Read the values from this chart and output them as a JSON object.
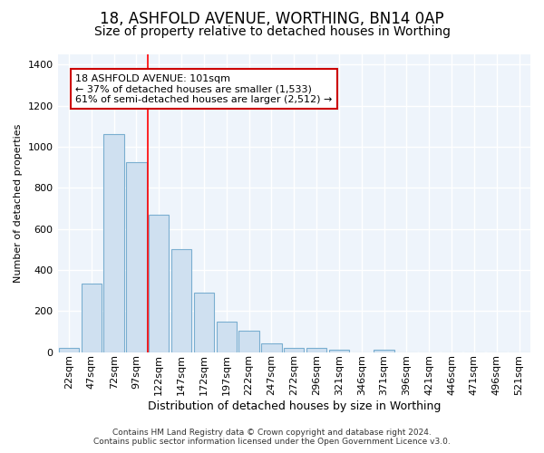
{
  "title1": "18, ASHFOLD AVENUE, WORTHING, BN14 0AP",
  "title2": "Size of property relative to detached houses in Worthing",
  "xlabel": "Distribution of detached houses by size in Worthing",
  "ylabel": "Number of detached properties",
  "categories": [
    "22sqm",
    "47sqm",
    "72sqm",
    "97sqm",
    "122sqm",
    "147sqm",
    "172sqm",
    "197sqm",
    "222sqm",
    "247sqm",
    "272sqm",
    "296sqm",
    "321sqm",
    "346sqm",
    "371sqm",
    "396sqm",
    "421sqm",
    "446sqm",
    "471sqm",
    "496sqm",
    "521sqm"
  ],
  "values": [
    20,
    335,
    1060,
    925,
    670,
    500,
    290,
    150,
    105,
    40,
    22,
    18,
    10,
    0,
    10,
    0,
    0,
    0,
    0,
    0,
    0
  ],
  "bar_color": "#cfe0f0",
  "bar_edge_color": "#7aaed0",
  "red_line_x": 3.5,
  "annotation_line1": "18 ASHFOLD AVENUE: 101sqm",
  "annotation_line2": "← 37% of detached houses are smaller (1,533)",
  "annotation_line3": "61% of semi-detached houses are larger (2,512) →",
  "annotation_box_color": "#ffffff",
  "annotation_box_edge": "#cc0000",
  "footer1": "Contains HM Land Registry data © Crown copyright and database right 2024.",
  "footer2": "Contains public sector information licensed under the Open Government Licence v3.0.",
  "ylim": [
    0,
    1450
  ],
  "background_color": "#ffffff",
  "plot_bg_color": "#eef4fb",
  "grid_color": "#ffffff",
  "title1_fontsize": 12,
  "title2_fontsize": 10,
  "xlabel_fontsize": 9,
  "ylabel_fontsize": 8,
  "tick_fontsize": 8,
  "footer_fontsize": 6.5
}
